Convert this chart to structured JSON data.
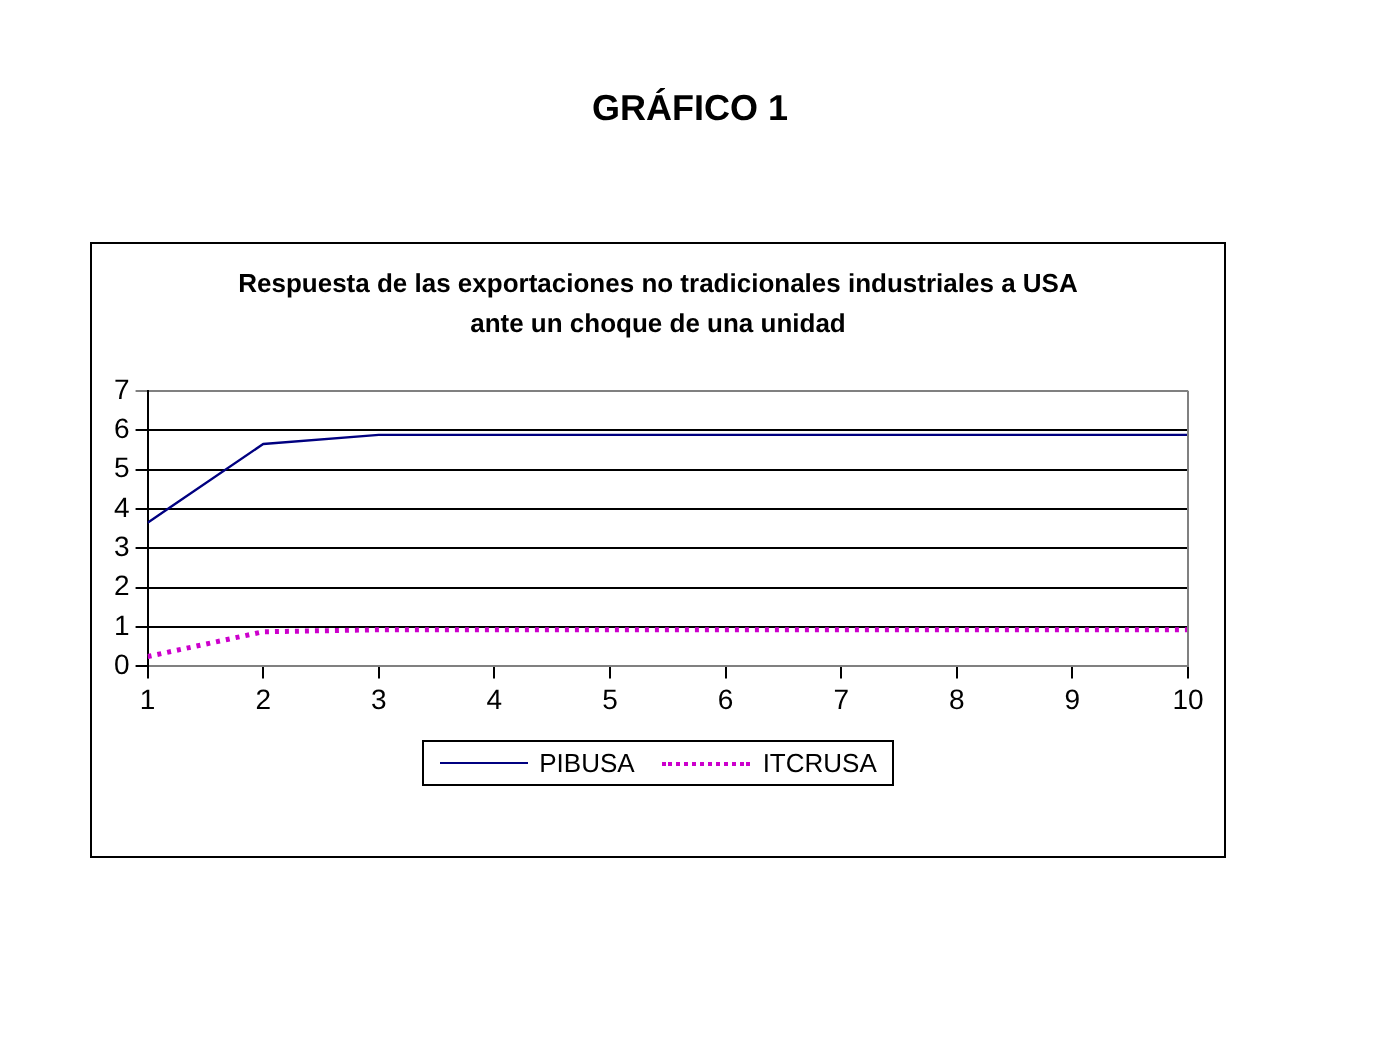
{
  "chart_data": {
    "type": "line",
    "title": "GRÁFICO 1",
    "subtitle": "Respuesta de las exportaciones no tradicionales industriales a USA ante un choque de una unidad",
    "x": [
      1,
      2,
      3,
      4,
      5,
      6,
      7,
      8,
      9,
      10
    ],
    "series": [
      {
        "name": "PIBUSA",
        "color": "#000080",
        "line_style": "solid",
        "values": [
          3.65,
          5.65,
          5.88,
          5.88,
          5.88,
          5.88,
          5.88,
          5.88,
          5.88,
          5.88
        ]
      },
      {
        "name": "ITCRUSA",
        "color": "#cc00cc",
        "line_style": "dotted",
        "values": [
          0.25,
          0.88,
          0.93,
          0.93,
          0.93,
          0.93,
          0.93,
          0.93,
          0.93,
          0.93
        ]
      }
    ],
    "xlim": [
      1,
      10
    ],
    "xticks": [
      1,
      2,
      3,
      4,
      5,
      6,
      7,
      8,
      9,
      10
    ],
    "ylim": [
      0,
      7
    ],
    "yticks": [
      0,
      1,
      2,
      3,
      4,
      5,
      6,
      7
    ],
    "grid": "y",
    "legend": "bottom",
    "marker": "none"
  }
}
